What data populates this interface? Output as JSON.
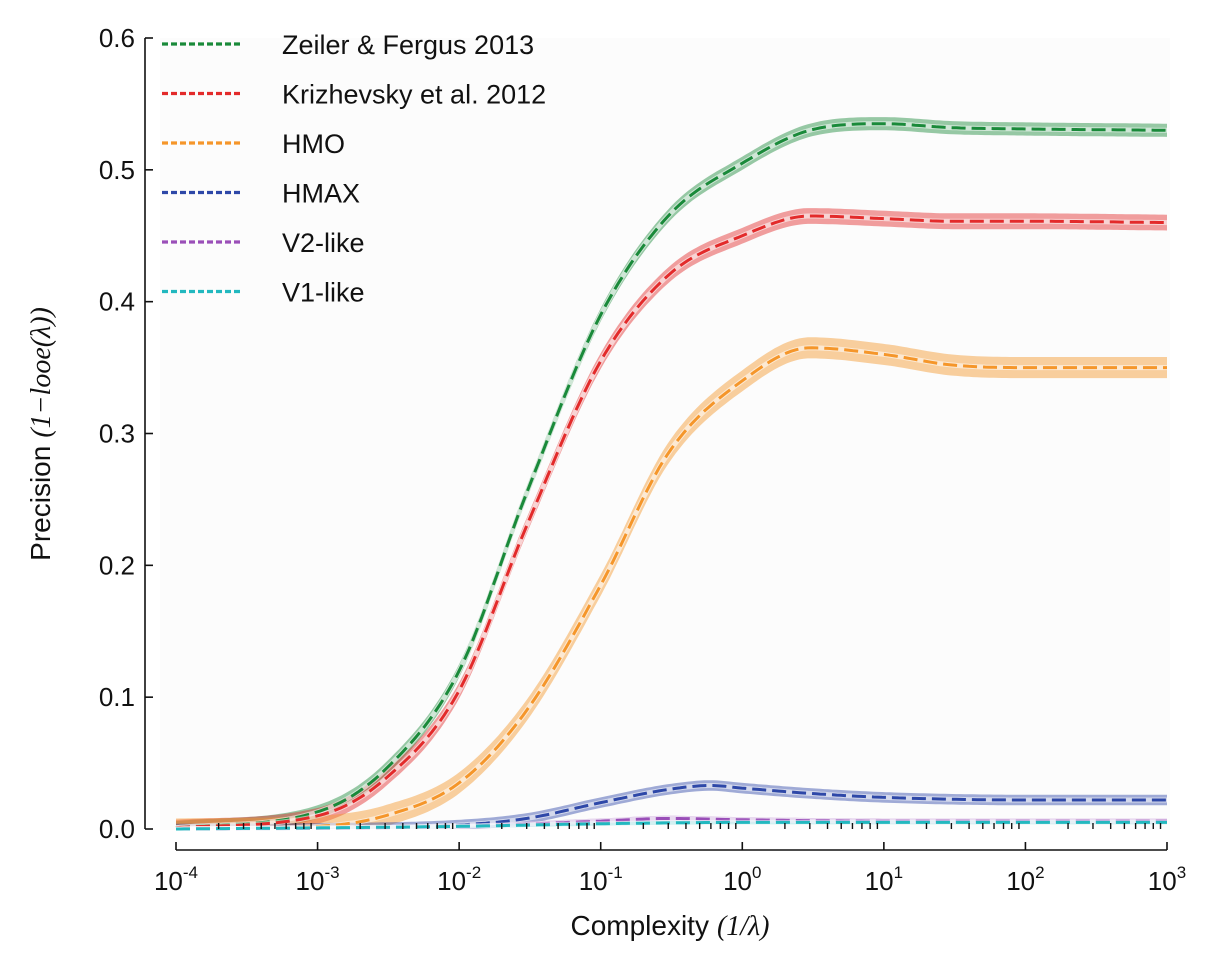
{
  "chart_data": {
    "type": "line",
    "xlabel": {
      "text": "Complexity",
      "math": "(1/λ)"
    },
    "ylabel": {
      "text": "Precision",
      "math": "(1−looe(λ))"
    },
    "xscale": "log",
    "xlim": [
      0.0001,
      1000
    ],
    "ylim": [
      0.0,
      0.6
    ],
    "x_ticks": [
      {
        "base": "10",
        "exp": "-4"
      },
      {
        "base": "10",
        "exp": "-3"
      },
      {
        "base": "10",
        "exp": "-2"
      },
      {
        "base": "10",
        "exp": "-1"
      },
      {
        "base": "10",
        "exp": "0"
      },
      {
        "base": "10",
        "exp": "1"
      },
      {
        "base": "10",
        "exp": "2"
      },
      {
        "base": "10",
        "exp": "3"
      }
    ],
    "y_ticks": [
      "0.0",
      "0.1",
      "0.2",
      "0.3",
      "0.4",
      "0.5",
      "0.6"
    ],
    "grid": false,
    "legend_position": "top-left",
    "series": [
      {
        "name": "Zeiler & Fergus 2013",
        "color": "#1a8a3a",
        "band": 0.005,
        "x": [
          0.0001,
          0.001,
          0.003,
          0.01,
          0.03,
          0.1,
          0.3,
          1,
          3,
          10,
          30,
          100,
          1000
        ],
        "y": [
          0.001,
          0.013,
          0.045,
          0.12,
          0.255,
          0.39,
          0.465,
          0.505,
          0.53,
          0.535,
          0.532,
          0.531,
          0.53
        ]
      },
      {
        "name": "Krizhevsky et al. 2012",
        "color": "#e32b2b",
        "band": 0.006,
        "x": [
          0.0001,
          0.001,
          0.003,
          0.01,
          0.03,
          0.1,
          0.3,
          1,
          3,
          10,
          30,
          100,
          1000
        ],
        "y": [
          0.001,
          0.01,
          0.038,
          0.105,
          0.23,
          0.355,
          0.42,
          0.45,
          0.465,
          0.463,
          0.461,
          0.461,
          0.46
        ]
      },
      {
        "name": "HMO",
        "color": "#f5962a",
        "band": 0.008,
        "x": [
          0.0001,
          0.001,
          0.003,
          0.01,
          0.03,
          0.1,
          0.3,
          1,
          3,
          10,
          30,
          100,
          1000
        ],
        "y": [
          0.0,
          0.002,
          0.01,
          0.035,
          0.09,
          0.185,
          0.285,
          0.34,
          0.365,
          0.36,
          0.352,
          0.35,
          0.35
        ]
      },
      {
        "name": "HMAX",
        "color": "#2e48a8",
        "band": 0.004,
        "x": [
          0.0001,
          0.001,
          0.01,
          0.03,
          0.1,
          0.3,
          0.6,
          1,
          3,
          10,
          100,
          1000
        ],
        "y": [
          0.0,
          0.0005,
          0.003,
          0.008,
          0.02,
          0.03,
          0.033,
          0.031,
          0.027,
          0.024,
          0.022,
          0.022
        ]
      },
      {
        "name": "V2-like",
        "color": "#9a4fb8",
        "band": 0.002,
        "x": [
          0.0001,
          0.01,
          0.1,
          0.3,
          1,
          10,
          1000
        ],
        "y": [
          0.0,
          0.002,
          0.006,
          0.008,
          0.007,
          0.006,
          0.006
        ]
      },
      {
        "name": "V1-like",
        "color": "#22b8bf",
        "band": 0.0015,
        "x": [
          0.0001,
          0.01,
          0.1,
          1,
          10,
          1000
        ],
        "y": [
          0.0,
          0.002,
          0.004,
          0.005,
          0.005,
          0.005
        ]
      }
    ]
  }
}
